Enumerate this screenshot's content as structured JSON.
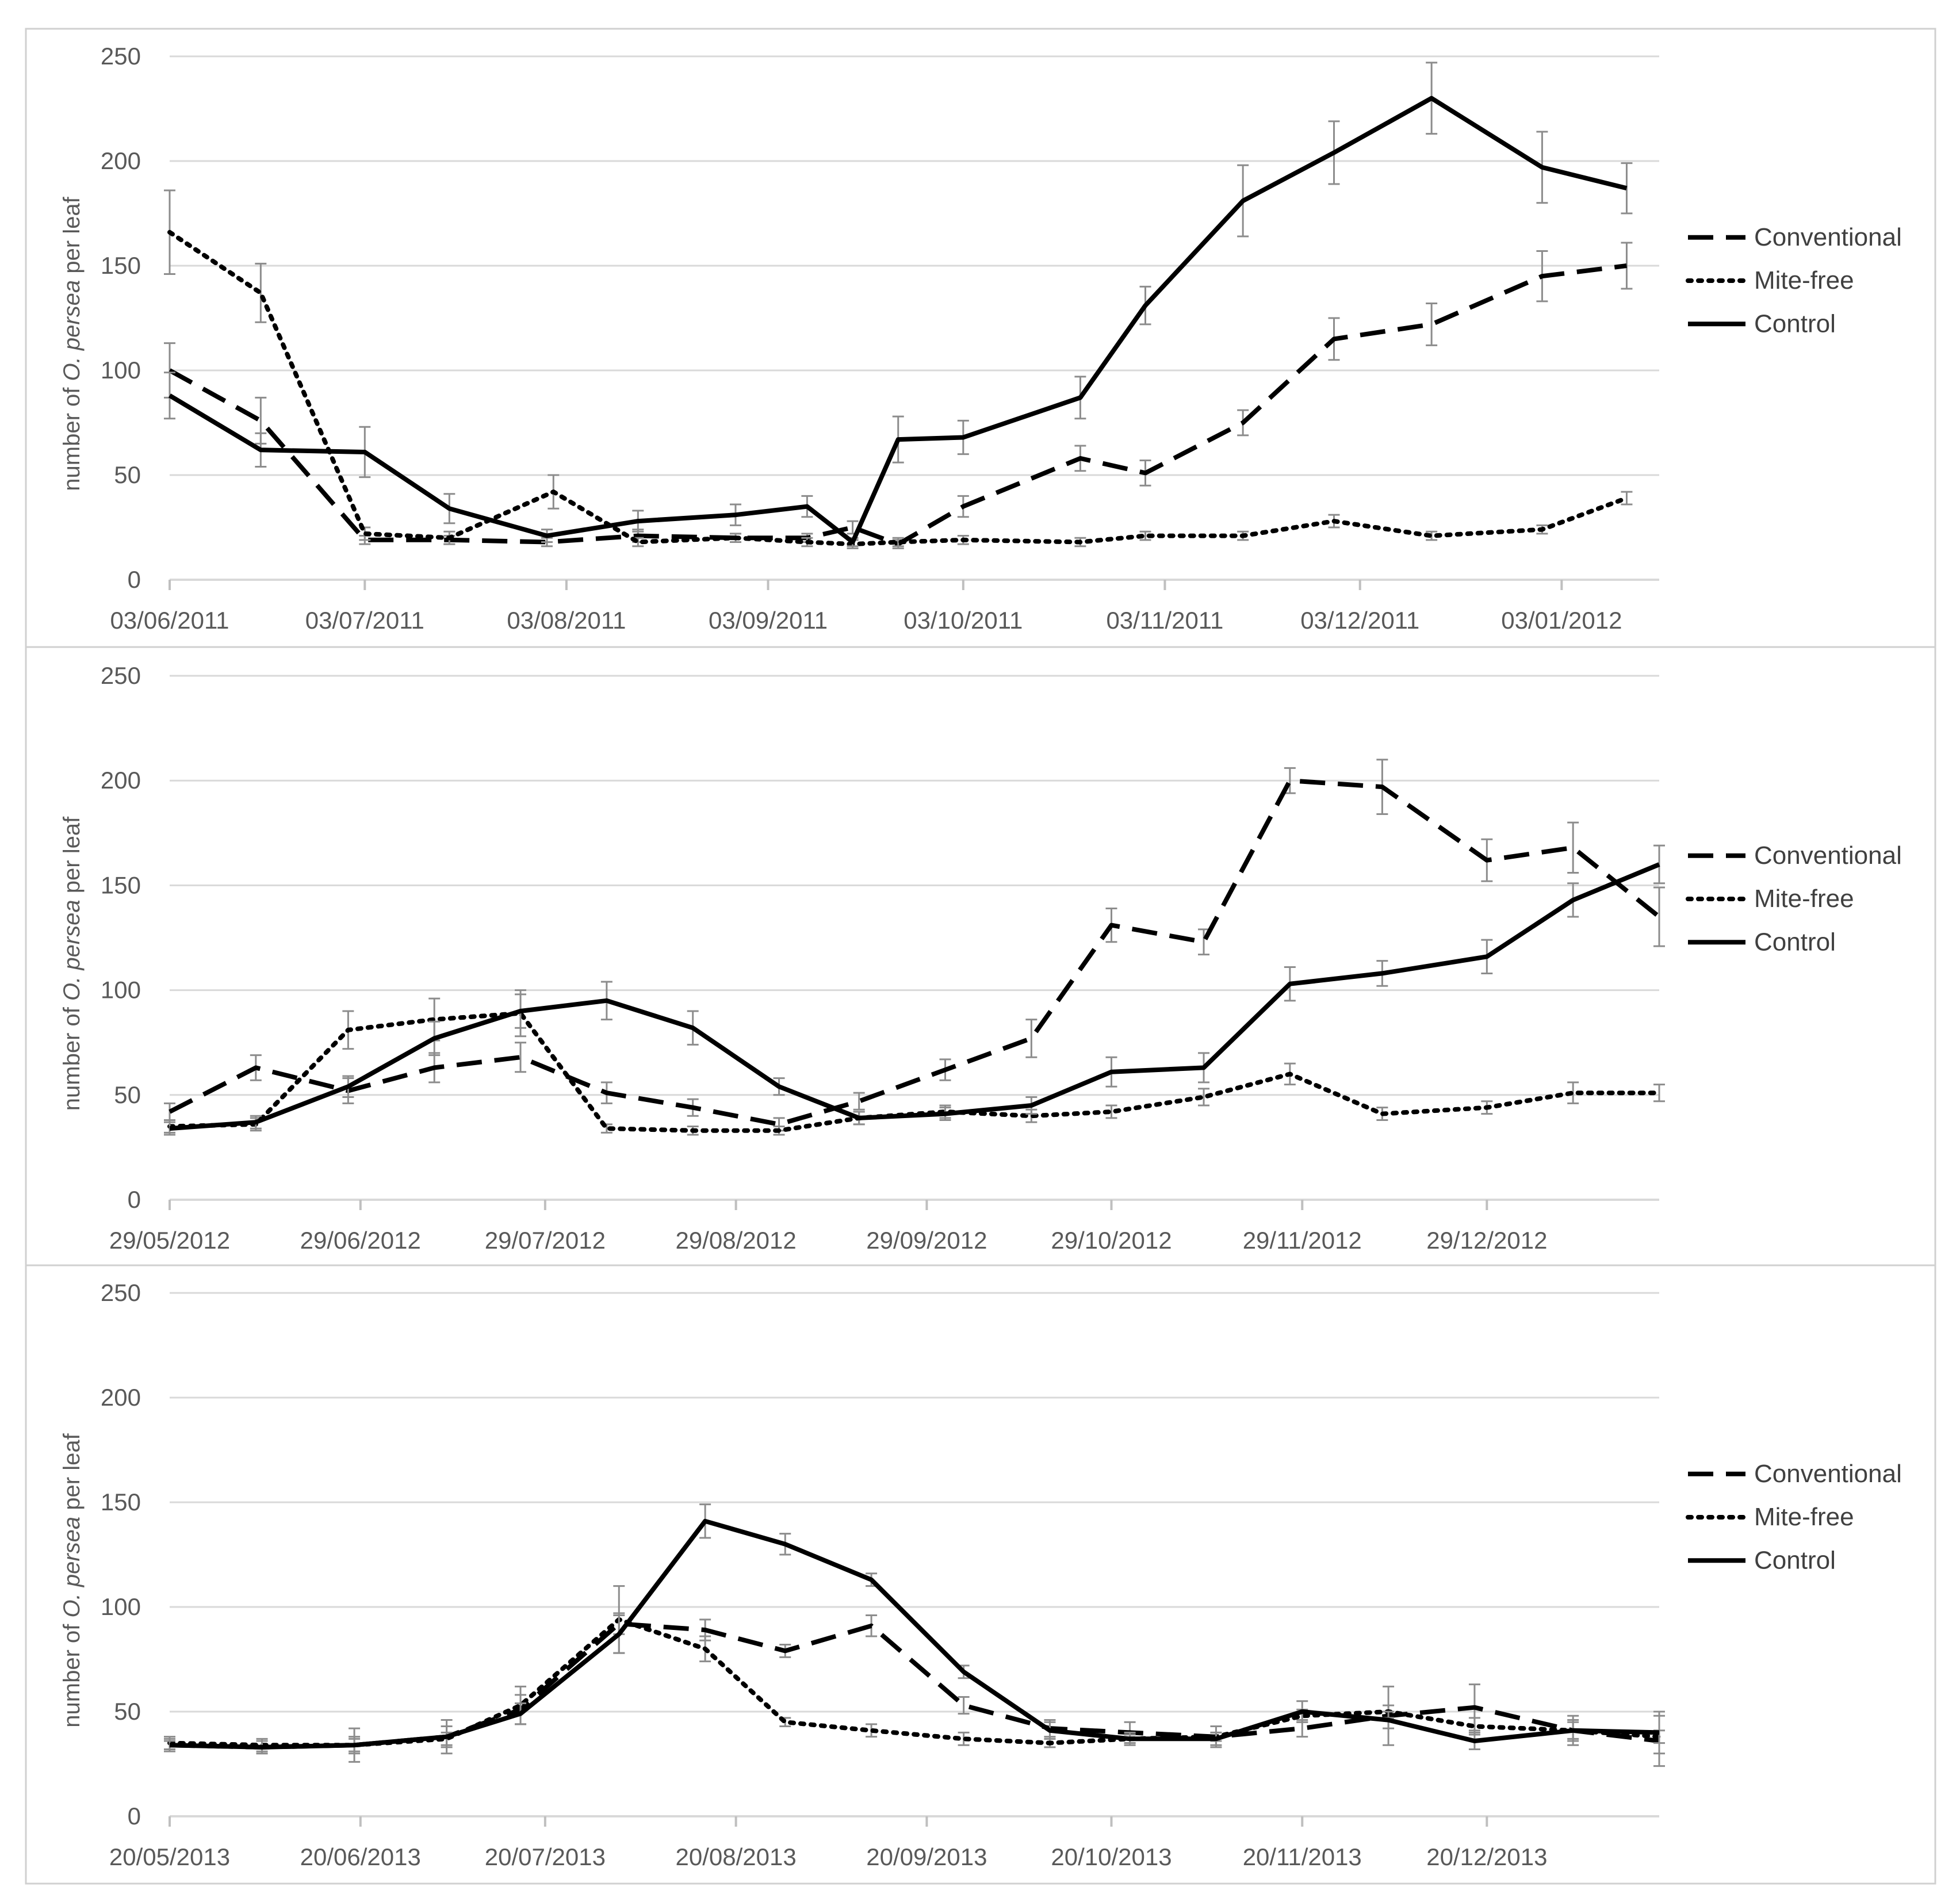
{
  "chart_data": [
    {
      "type": "line",
      "ylabel": "number of O. persea per leaf",
      "ylabel_parts": [
        "number of ",
        "O. persea",
        " per leaf"
      ],
      "ylim": [
        0,
        250
      ],
      "yticks": [
        0,
        50,
        100,
        150,
        200,
        250
      ],
      "grid": true,
      "legend_position": "right",
      "x_start": "2011-06-03",
      "x_end": "2012-01-18",
      "xtick_labels": [
        "03/06/2011",
        "03/07/2011",
        "03/08/2011",
        "03/09/2011",
        "03/10/2011",
        "03/11/2011",
        "03/12/2011",
        "03/01/2012"
      ],
      "xtick_dates": [
        "2011-06-03",
        "2011-07-03",
        "2011-08-03",
        "2011-09-03",
        "2011-10-03",
        "2011-11-03",
        "2011-12-03",
        "2012-01-03"
      ],
      "series": [
        {
          "name": "Conventional",
          "dash": "dashed",
          "x": [
            "2011-06-03",
            "2011-06-17",
            "2011-07-03",
            "2011-07-16",
            "2011-07-31",
            "2011-08-14",
            "2011-08-29",
            "2011-09-09",
            "2011-09-16",
            "2011-09-23",
            "2011-10-03",
            "2011-10-21",
            "2011-10-31",
            "2011-11-15",
            "2011-11-29",
            "2011-12-14",
            "2011-12-31",
            "2012-01-13"
          ],
          "y": [
            100,
            76,
            19,
            19,
            18,
            21,
            20,
            20,
            25,
            17,
            35,
            58,
            51,
            75,
            115,
            122,
            145,
            150
          ],
          "err": [
            13,
            11,
            2,
            2,
            2,
            3,
            2,
            2,
            3,
            2,
            5,
            6,
            6,
            6,
            10,
            10,
            12,
            11
          ]
        },
        {
          "name": "Mite-free",
          "dash": "dotted",
          "x": [
            "2011-06-03",
            "2011-06-17",
            "2011-07-03",
            "2011-07-16",
            "2011-08-01",
            "2011-08-14",
            "2011-08-29",
            "2011-09-09",
            "2011-09-16",
            "2011-09-23",
            "2011-10-03",
            "2011-10-21",
            "2011-10-31",
            "2011-11-15",
            "2011-11-29",
            "2011-12-14",
            "2011-12-31",
            "2012-01-13"
          ],
          "y": [
            166,
            137,
            22,
            20,
            42,
            18,
            20,
            18,
            17,
            18,
            19,
            18,
            21,
            21,
            28,
            21,
            24,
            39
          ],
          "err": [
            20,
            14,
            3,
            3,
            8,
            2,
            2,
            2,
            2,
            2,
            2,
            2,
            2,
            2,
            3,
            2,
            2,
            3
          ]
        },
        {
          "name": "Control",
          "dash": "solid",
          "x": [
            "2011-06-03",
            "2011-06-17",
            "2011-07-03",
            "2011-07-16",
            "2011-07-31",
            "2011-08-14",
            "2011-08-29",
            "2011-09-09",
            "2011-09-16",
            "2011-09-23",
            "2011-10-03",
            "2011-10-21",
            "2011-10-31",
            "2011-11-15",
            "2011-11-29",
            "2011-12-14",
            "2011-12-31",
            "2012-01-13"
          ],
          "y": [
            88,
            62,
            61,
            34,
            21,
            28,
            31,
            35,
            18,
            67,
            68,
            87,
            131,
            181,
            204,
            230,
            197,
            187
          ],
          "err": [
            11,
            8,
            12,
            7,
            3,
            5,
            5,
            5,
            2,
            11,
            8,
            10,
            9,
            17,
            15,
            17,
            17,
            12
          ]
        }
      ]
    },
    {
      "type": "line",
      "ylabel": "number of O. persea per leaf",
      "ylabel_parts": [
        "number of ",
        "O. persea",
        " per leaf"
      ],
      "ylim": [
        0,
        250
      ],
      "yticks": [
        0,
        50,
        100,
        150,
        200,
        250
      ],
      "grid": true,
      "legend_position": "right",
      "x_start": "2012-05-29",
      "x_end": "2013-01-26",
      "xtick_labels": [
        "29/05/2012",
        "29/06/2012",
        "29/07/2012",
        "29/08/2012",
        "29/09/2012",
        "29/10/2012",
        "29/11/2012",
        "29/12/2012"
      ],
      "xtick_dates": [
        "2012-05-29",
        "2012-06-29",
        "2012-07-29",
        "2012-08-29",
        "2012-09-29",
        "2012-10-29",
        "2012-11-29",
        "2012-12-29"
      ],
      "series": [
        {
          "name": "Conventional",
          "dash": "dashed",
          "x": [
            "2012-05-29",
            "2012-06-12",
            "2012-06-27",
            "2012-07-11",
            "2012-07-25",
            "2012-08-08",
            "2012-08-22",
            "2012-09-05",
            "2012-09-18",
            "2012-10-02",
            "2012-10-16",
            "2012-10-29",
            "2012-11-13",
            "2012-11-27",
            "2012-12-12",
            "2012-12-29",
            "2013-01-12",
            "2013-01-26"
          ],
          "y": [
            42,
            63,
            52,
            63,
            68,
            51,
            44,
            36,
            47,
            62,
            77,
            131,
            123,
            200,
            197,
            162,
            168,
            135
          ],
          "err": [
            4,
            6,
            6,
            7,
            7,
            5,
            4,
            3,
            4,
            5,
            9,
            8,
            6,
            6,
            13,
            10,
            12,
            14
          ]
        },
        {
          "name": "Mite-free",
          "dash": "dotted",
          "x": [
            "2012-05-29",
            "2012-06-12",
            "2012-06-27",
            "2012-07-11",
            "2012-07-25",
            "2012-08-08",
            "2012-08-22",
            "2012-09-05",
            "2012-09-18",
            "2012-10-02",
            "2012-10-16",
            "2012-10-29",
            "2012-11-13",
            "2012-11-27",
            "2012-12-12",
            "2012-12-29",
            "2013-01-12",
            "2013-01-26"
          ],
          "y": [
            35,
            36,
            81,
            86,
            89,
            34,
            33,
            33,
            39,
            42,
            40,
            42,
            49,
            60,
            41,
            44,
            51,
            51
          ],
          "err": [
            3,
            3,
            9,
            10,
            11,
            2,
            2,
            2,
            3,
            3,
            3,
            3,
            4,
            5,
            3,
            3,
            5,
            4
          ]
        },
        {
          "name": "Control",
          "dash": "solid",
          "x": [
            "2012-05-29",
            "2012-06-12",
            "2012-06-27",
            "2012-07-11",
            "2012-07-25",
            "2012-08-08",
            "2012-08-22",
            "2012-09-05",
            "2012-09-18",
            "2012-10-02",
            "2012-10-16",
            "2012-10-29",
            "2012-11-13",
            "2012-11-27",
            "2012-12-12",
            "2012-12-29",
            "2013-01-12",
            "2013-01-26"
          ],
          "y": [
            34,
            37,
            54,
            77,
            90,
            95,
            82,
            54,
            39,
            41,
            45,
            61,
            63,
            103,
            108,
            116,
            143,
            160
          ],
          "err": [
            3,
            3,
            5,
            8,
            8,
            9,
            8,
            4,
            3,
            3,
            4,
            7,
            7,
            8,
            6,
            8,
            8,
            9
          ]
        }
      ]
    },
    {
      "type": "line",
      "ylabel": "number of O. persea per leaf",
      "ylabel_parts": [
        "number of ",
        "O. persea",
        " per leaf"
      ],
      "ylim": [
        0,
        250
      ],
      "yticks": [
        0,
        50,
        100,
        150,
        200,
        250
      ],
      "grid": true,
      "legend_position": "right",
      "x_start": "2013-05-20",
      "x_end": "2014-01-17",
      "xtick_labels": [
        "20/05/2013",
        "20/06/2013",
        "20/07/2013",
        "20/08/2013",
        "20/09/2013",
        "20/10/2013",
        "20/11/2013",
        "20/12/2013"
      ],
      "xtick_dates": [
        "2013-05-20",
        "2013-06-20",
        "2013-07-20",
        "2013-08-20",
        "2013-09-20",
        "2013-10-20",
        "2013-11-20",
        "2013-12-20"
      ],
      "series": [
        {
          "name": "Conventional",
          "dash": "dashed",
          "x": [
            "2013-05-20",
            "2013-06-04",
            "2013-06-19",
            "2013-07-04",
            "2013-07-16",
            "2013-08-01",
            "2013-08-15",
            "2013-08-28",
            "2013-09-11",
            "2013-09-26",
            "2013-10-10",
            "2013-10-23",
            "2013-11-06",
            "2013-11-20",
            "2013-12-04",
            "2013-12-18",
            "2014-01-03",
            "2014-01-17"
          ],
          "y": [
            34,
            33,
            34,
            38,
            51,
            92,
            89,
            79,
            91,
            53,
            42,
            40,
            38,
            42,
            48,
            52,
            41,
            36
          ],
          "err": [
            3,
            3,
            4,
            5,
            7,
            5,
            5,
            3,
            5,
            4,
            4,
            5,
            5,
            4,
            14,
            11,
            7,
            12
          ]
        },
        {
          "name": "Mite-free",
          "dash": "dotted",
          "x": [
            "2013-05-20",
            "2013-06-04",
            "2013-06-19",
            "2013-07-04",
            "2013-07-16",
            "2013-08-01",
            "2013-08-15",
            "2013-08-28",
            "2013-09-11",
            "2013-09-26",
            "2013-10-10",
            "2013-10-23",
            "2013-11-06",
            "2013-11-20",
            "2013-12-04",
            "2013-12-18",
            "2014-01-03",
            "2014-01-17"
          ],
          "y": [
            35,
            34,
            34,
            37,
            53,
            94,
            80,
            45,
            41,
            37,
            35,
            37,
            38,
            48,
            50,
            43,
            41,
            38
          ],
          "err": [
            3,
            3,
            3,
            3,
            9,
            16,
            6,
            2,
            3,
            3,
            2,
            2,
            2,
            3,
            3,
            4,
            4,
            3
          ]
        },
        {
          "name": "Control",
          "dash": "solid",
          "x": [
            "2013-05-20",
            "2013-06-04",
            "2013-06-19",
            "2013-07-04",
            "2013-07-16",
            "2013-08-01",
            "2013-08-15",
            "2013-08-28",
            "2013-09-11",
            "2013-09-26",
            "2013-10-10",
            "2013-10-23",
            "2013-11-06",
            "2013-11-20",
            "2013-12-04",
            "2013-12-18",
            "2014-01-03",
            "2014-01-17"
          ],
          "y": [
            34,
            33,
            34,
            38,
            49,
            87,
            141,
            130,
            113,
            69,
            41,
            37,
            37,
            50,
            46,
            36,
            41,
            40
          ],
          "err": [
            2,
            3,
            8,
            8,
            5,
            9,
            8,
            5,
            3,
            3,
            4,
            3,
            3,
            5,
            4,
            4,
            5,
            10
          ]
        }
      ]
    }
  ]
}
